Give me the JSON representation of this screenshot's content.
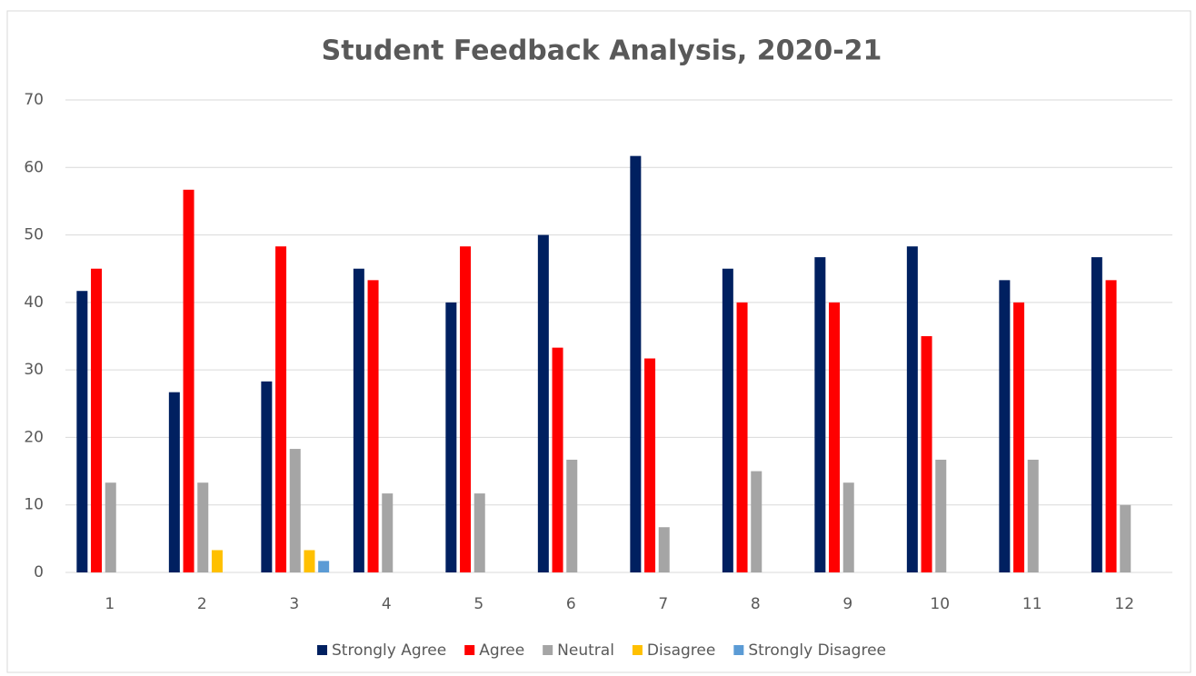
{
  "chart_data": {
    "type": "bar",
    "title": "Student Feedback Analysis, 2020-21",
    "categories": [
      "1",
      "2",
      "3",
      "4",
      "5",
      "6",
      "7",
      "8",
      "9",
      "10",
      "11",
      "12"
    ],
    "series": [
      {
        "name": "Strongly Agree",
        "color": "#002060",
        "values": [
          41.7,
          26.7,
          28.3,
          45,
          40,
          50,
          61.7,
          45,
          46.7,
          48.3,
          43.3,
          46.7
        ]
      },
      {
        "name": "Agree",
        "color": "#ff0000",
        "values": [
          45,
          56.7,
          48.3,
          43.3,
          48.3,
          33.3,
          31.7,
          40,
          40,
          35,
          40,
          43.3
        ]
      },
      {
        "name": "Neutral",
        "color": "#a5a5a5",
        "values": [
          13.3,
          13.3,
          18.3,
          11.7,
          11.7,
          16.7,
          6.7,
          15,
          13.3,
          16.7,
          16.7,
          10
        ]
      },
      {
        "name": "Disagree",
        "color": "#ffc000",
        "values": [
          0,
          3.3,
          3.3,
          0,
          0,
          0,
          0,
          0,
          0,
          0,
          0,
          0
        ]
      },
      {
        "name": "Strongly Disagree",
        "color": "#5b9bd5",
        "values": [
          0,
          0,
          1.7,
          0,
          0,
          0,
          0,
          0,
          0,
          0,
          0,
          0
        ]
      }
    ],
    "ylim": [
      0,
      70
    ],
    "yticks": [
      0,
      10,
      20,
      30,
      40,
      50,
      60,
      70
    ],
    "grid": true,
    "legend": "bottom"
  }
}
